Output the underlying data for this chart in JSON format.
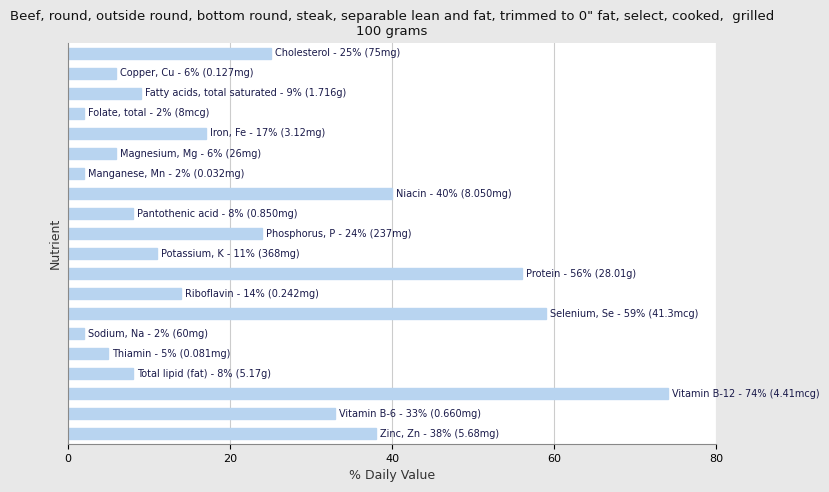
{
  "title": "Beef, round, outside round, bottom round, steak, separable lean and fat, trimmed to 0\" fat, select, cooked,  grilled\n100 grams",
  "xlabel": "% Daily Value",
  "ylabel": "Nutrient",
  "figure_bg": "#e8e8e8",
  "plot_bg": "#ffffff",
  "bar_color": "#b8d4f0",
  "text_color": "#1a1a4a",
  "xlim": [
    0,
    80
  ],
  "xticks": [
    0,
    20,
    40,
    60,
    80
  ],
  "nutrients": [
    {
      "label": "Cholesterol - 25% (75mg)",
      "value": 25
    },
    {
      "label": "Copper, Cu - 6% (0.127mg)",
      "value": 6
    },
    {
      "label": "Fatty acids, total saturated - 9% (1.716g)",
      "value": 9
    },
    {
      "label": "Folate, total - 2% (8mcg)",
      "value": 2
    },
    {
      "label": "Iron, Fe - 17% (3.12mg)",
      "value": 17
    },
    {
      "label": "Magnesium, Mg - 6% (26mg)",
      "value": 6
    },
    {
      "label": "Manganese, Mn - 2% (0.032mg)",
      "value": 2
    },
    {
      "label": "Niacin - 40% (8.050mg)",
      "value": 40
    },
    {
      "label": "Pantothenic acid - 8% (0.850mg)",
      "value": 8
    },
    {
      "label": "Phosphorus, P - 24% (237mg)",
      "value": 24
    },
    {
      "label": "Potassium, K - 11% (368mg)",
      "value": 11
    },
    {
      "label": "Protein - 56% (28.01g)",
      "value": 56
    },
    {
      "label": "Riboflavin - 14% (0.242mg)",
      "value": 14
    },
    {
      "label": "Selenium, Se - 59% (41.3mcg)",
      "value": 59
    },
    {
      "label": "Sodium, Na - 2% (60mg)",
      "value": 2
    },
    {
      "label": "Thiamin - 5% (0.081mg)",
      "value": 5
    },
    {
      "label": "Total lipid (fat) - 8% (5.17g)",
      "value": 8
    },
    {
      "label": "Vitamin B-12 - 74% (4.41mcg)",
      "value": 74
    },
    {
      "label": "Vitamin B-6 - 33% (0.660mg)",
      "value": 33
    },
    {
      "label": "Zinc, Zn - 38% (5.68mg)",
      "value": 38
    }
  ]
}
